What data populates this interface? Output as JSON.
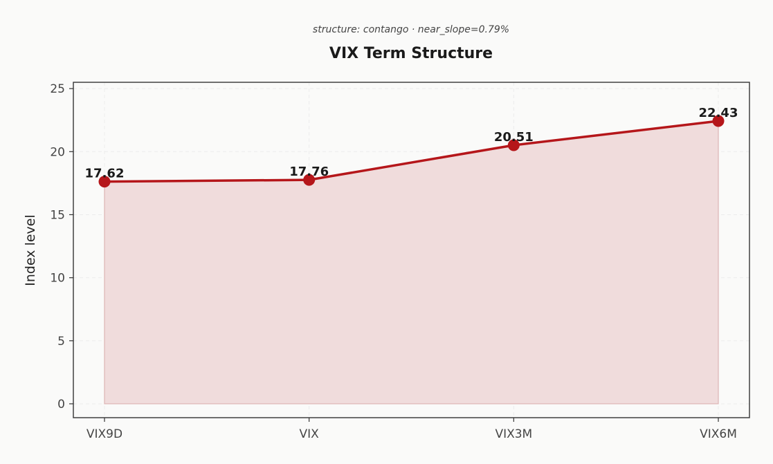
{
  "subtitle": "structure: contango · near_slope=0.79%",
  "title": "VIX Term Structure",
  "chart_data": {
    "type": "line",
    "title": "VIX Term Structure",
    "subtitle": "structure: contango · near_slope=0.79%",
    "xlabel": "",
    "ylabel": "Index level",
    "categories": [
      "VIX9D",
      "VIX",
      "VIX3M",
      "VIX6M"
    ],
    "series": [
      {
        "values": [
          17.62,
          17.76,
          20.51,
          22.43
        ],
        "data_labels": [
          "17.62",
          "17.76",
          "20.51",
          "22.43"
        ]
      }
    ],
    "ylim": [
      -1.1,
      25.5
    ],
    "yticks": [
      0,
      5,
      10,
      15,
      20,
      25
    ],
    "ytick_labels": [
      "0",
      "5",
      "10",
      "15",
      "20",
      "25"
    ],
    "grid": true,
    "area_fill": true,
    "colors": {
      "line": "#b5161a",
      "marker": "#b5161a",
      "fill": "#f0dcdc",
      "fill_edge": "#ddb3b3",
      "grid": "#ececec",
      "frame": "#333333",
      "background": "#fafaf9"
    }
  }
}
